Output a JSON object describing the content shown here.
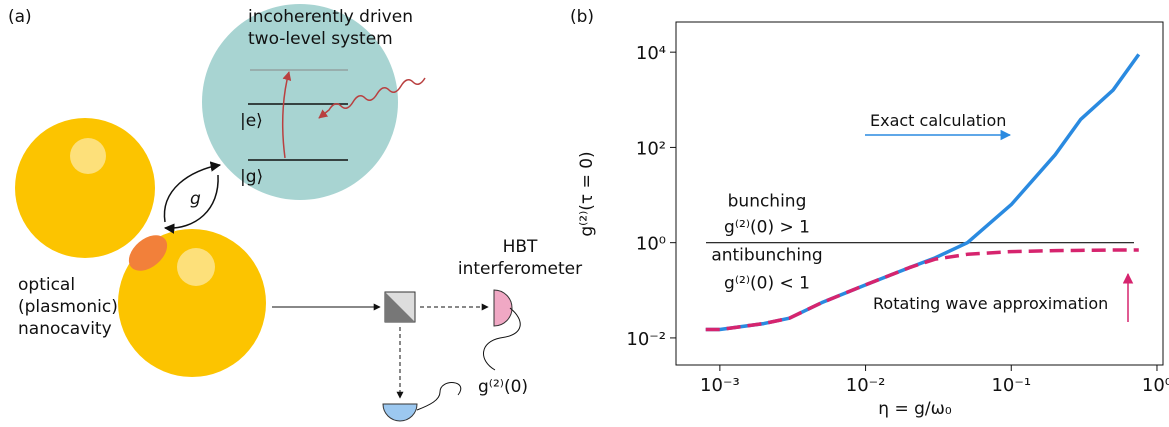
{
  "panel_a": {
    "label": "(a)",
    "system_title": [
      "incoherently driven",
      "two-level system"
    ],
    "excited_state": "|e⟩",
    "ground_state": "|g⟩",
    "coupling": "g",
    "cavity_label": [
      "optical",
      "(plasmonic)",
      "nanocavity"
    ],
    "detector_label": [
      "HBT",
      "interferometer"
    ],
    "correlation": "g⁽²⁾(0)"
  },
  "chart_data": {
    "type": "line",
    "label": "(b)",
    "x_label": "η = g/ω₀",
    "y_label": "g⁽²⁾(τ = 0)",
    "log_x": true,
    "log_y": true,
    "xlim": [
      0.0005,
      1.1
    ],
    "ylim": [
      0.0027,
      43000
    ],
    "xticks": [
      {
        "value": 0.001,
        "label": "10⁻³"
      },
      {
        "value": 0.01,
        "label": "10⁻²"
      },
      {
        "value": 0.1,
        "label": "10⁻¹"
      },
      {
        "value": 1,
        "label": "10⁰"
      }
    ],
    "yticks": [
      {
        "value": 0.01,
        "label": "10⁻²"
      },
      {
        "value": 1,
        "label": "10⁰"
      },
      {
        "value": 100,
        "label": "10²"
      },
      {
        "value": 10000,
        "label": "10⁴"
      }
    ],
    "x": [
      0.0008,
      0.001,
      0.002,
      0.003,
      0.005,
      0.01,
      0.02,
      0.03,
      0.05,
      0.1,
      0.2,
      0.3,
      0.5,
      0.75
    ],
    "series": [
      {
        "name": "Exact calculation",
        "color": "#2a8ae0",
        "dashed": false,
        "values": [
          0.015,
          0.015,
          0.02,
          0.026,
          0.055,
          0.13,
          0.3,
          0.48,
          1.0,
          6.3,
          70,
          390,
          1600,
          9000
        ]
      },
      {
        "name": "Rotating wave approximation",
        "color": "#d6246e",
        "dashed": true,
        "values": [
          0.015,
          0.015,
          0.02,
          0.026,
          0.055,
          0.13,
          0.3,
          0.45,
          0.57,
          0.65,
          0.68,
          0.69,
          0.7,
          0.7
        ]
      }
    ],
    "reference_line": 1,
    "annotations": [
      "bunching",
      "g⁽²⁾(0) > 1",
      "antibunching",
      "g⁽²⁾(0) < 1"
    ]
  }
}
